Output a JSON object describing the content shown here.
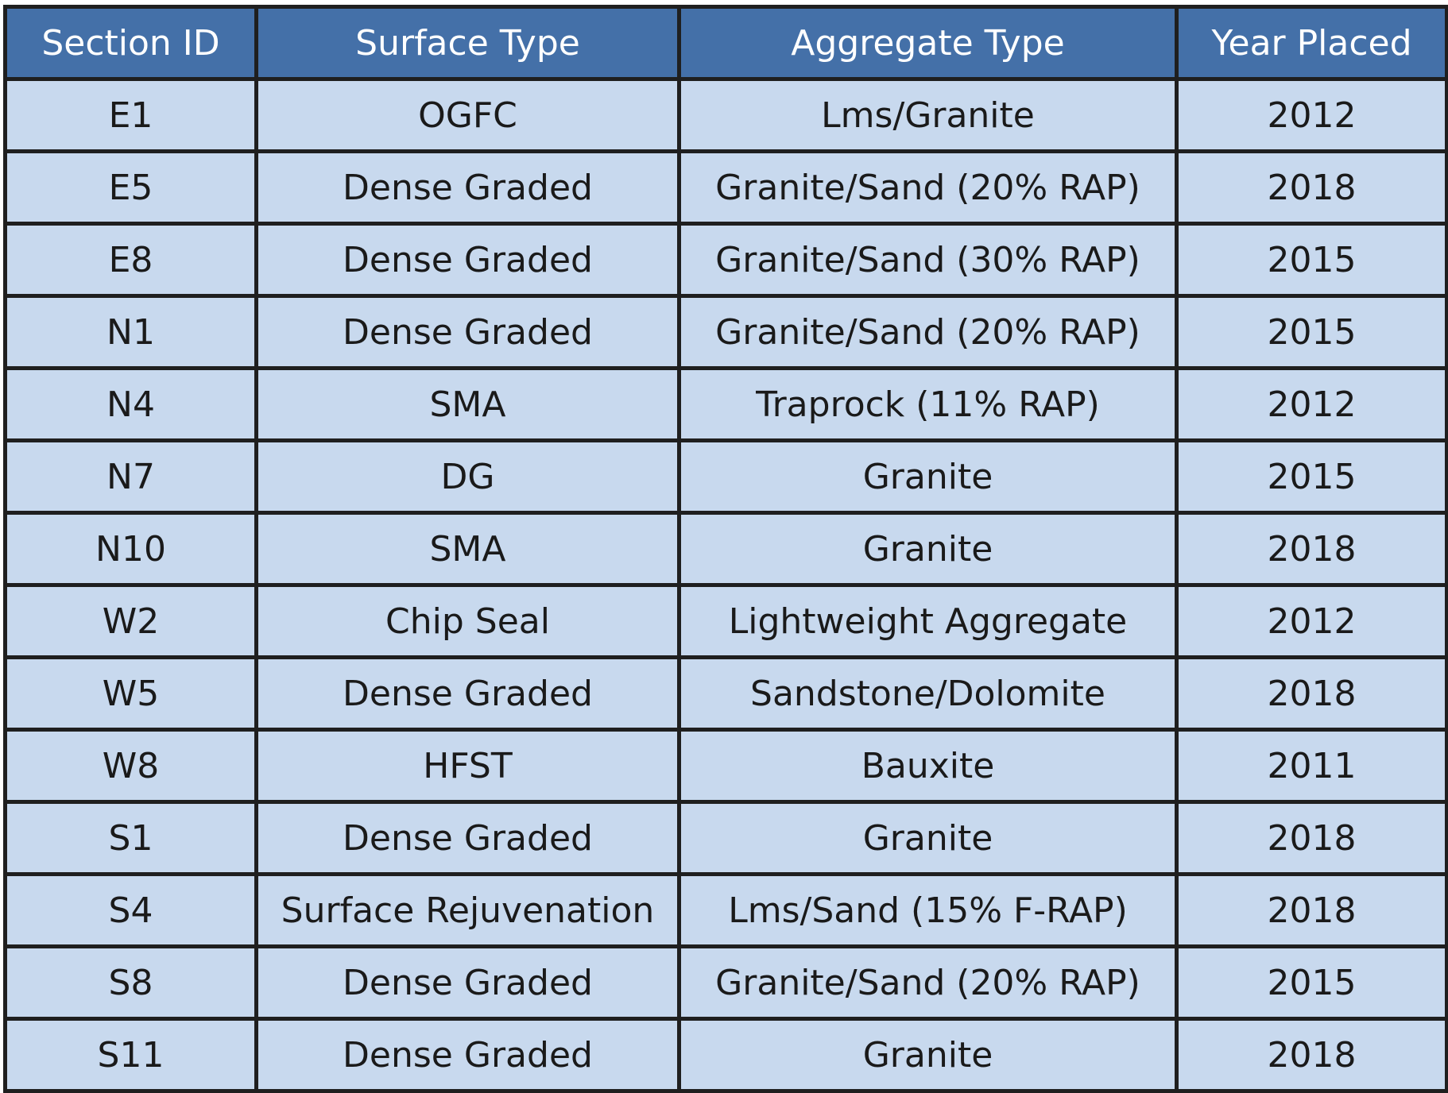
{
  "table": {
    "headers": [
      "Section ID",
      "Surface Type",
      "Aggregate Type",
      "Year Placed"
    ],
    "rows": [
      [
        "E1",
        "OGFC",
        "Lms/Granite",
        "2012"
      ],
      [
        "E5",
        "Dense Graded",
        "Granite/Sand (20% RAP)",
        "2018"
      ],
      [
        "E8",
        "Dense Graded",
        "Granite/Sand (30% RAP)",
        "2015"
      ],
      [
        "N1",
        "Dense Graded",
        "Granite/Sand (20% RAP)",
        "2015"
      ],
      [
        "N4",
        "SMA",
        "Traprock  (11% RAP)",
        "2012"
      ],
      [
        "N7",
        "DG",
        "Granite",
        "2015"
      ],
      [
        "N10",
        "SMA",
        "Granite",
        "2018"
      ],
      [
        "W2",
        "Chip Seal",
        "Lightweight Aggregate",
        "2012"
      ],
      [
        "W5",
        "Dense Graded",
        "Sandstone/Dolomite",
        "2018"
      ],
      [
        "W8",
        "HFST",
        "Bauxite",
        "2011"
      ],
      [
        "S1",
        "Dense Graded",
        "Granite",
        "2018"
      ],
      [
        "S4",
        "Surface Rejuvenation",
        "Lms/Sand (15% F-RAP)",
        "2018"
      ],
      [
        "S8",
        "Dense Graded",
        "Granite/Sand (20% RAP)",
        "2015"
      ],
      [
        "S11",
        "Dense Graded",
        "Granite",
        "2018"
      ]
    ]
  },
  "colors": {
    "header_bg": "#4470a8",
    "cell_bg": "#c8d9ee",
    "border": "#1f1f1f"
  }
}
